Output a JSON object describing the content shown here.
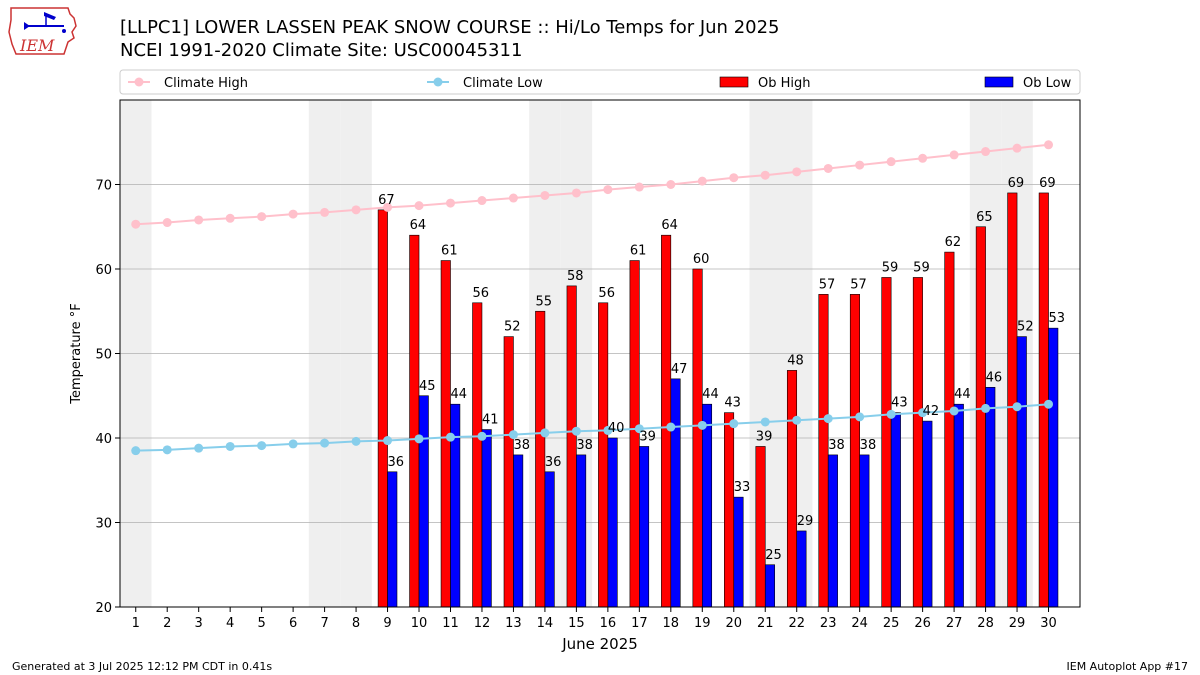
{
  "header": {
    "title_line1": "[LLPC1] LOWER LASSEN PEAK SNOW COURSE :: Hi/Lo Temps for Jun 2025",
    "title_line2": "NCEI 1991-2020 Climate Site: USC00045311",
    "logo_text": "IEM"
  },
  "footer": {
    "generated": "Generated at 3 Jul 2025 12:12 PM CDT in 0.41s",
    "app": "IEM Autoplot App #17"
  },
  "colors": {
    "climate_high": "#ffc0cb",
    "climate_low": "#87ceeb",
    "ob_high": "#ff0000",
    "ob_low": "#0000ff",
    "weekend_band": "#efefef"
  },
  "chart_data": {
    "type": "bar",
    "xlabel": "June 2025",
    "ylabel": "Temperature °F",
    "ylim": [
      20,
      80
    ],
    "yticks": [
      20,
      30,
      40,
      50,
      60,
      70
    ],
    "grid": "horizontal",
    "legend_position": "top",
    "weekend_days": [
      1,
      7,
      8,
      14,
      15,
      21,
      22,
      28,
      29
    ],
    "categories": [
      1,
      2,
      3,
      4,
      5,
      6,
      7,
      8,
      9,
      10,
      11,
      12,
      13,
      14,
      15,
      16,
      17,
      18,
      19,
      20,
      21,
      22,
      23,
      24,
      25,
      26,
      27,
      28,
      29,
      30
    ],
    "series": [
      {
        "name": "Climate High",
        "kind": "line",
        "values": [
          65.3,
          65.5,
          65.8,
          66.0,
          66.2,
          66.5,
          66.7,
          67.0,
          67.3,
          67.5,
          67.8,
          68.1,
          68.4,
          68.7,
          69.0,
          69.4,
          69.7,
          70.0,
          70.4,
          70.8,
          71.1,
          71.5,
          71.9,
          72.3,
          72.7,
          73.1,
          73.5,
          73.9,
          74.3,
          74.7
        ]
      },
      {
        "name": "Climate Low",
        "kind": "line",
        "values": [
          38.5,
          38.6,
          38.8,
          39.0,
          39.1,
          39.3,
          39.4,
          39.6,
          39.7,
          39.9,
          40.1,
          40.2,
          40.4,
          40.6,
          40.8,
          40.9,
          41.1,
          41.3,
          41.5,
          41.7,
          41.9,
          42.1,
          42.3,
          42.5,
          42.8,
          43.0,
          43.2,
          43.5,
          43.7,
          44.0
        ]
      },
      {
        "name": "Ob High",
        "kind": "bar",
        "values": [
          null,
          null,
          null,
          null,
          null,
          null,
          null,
          null,
          67,
          64,
          61,
          56,
          52,
          55,
          58,
          56,
          61,
          64,
          60,
          43,
          39,
          48,
          57,
          57,
          59,
          59,
          62,
          65,
          69,
          69
        ],
        "labels": [
          "",
          "",
          "",
          "",
          "",
          "",
          "",
          "",
          "67",
          "64",
          "61",
          "56",
          "52",
          "55",
          "58",
          "56",
          "61",
          "64",
          "60",
          "43",
          "39",
          "48",
          "57",
          "57",
          "59",
          "59",
          "62",
          "65",
          "69",
          "69"
        ]
      },
      {
        "name": "Ob Low",
        "kind": "bar",
        "values": [
          null,
          null,
          null,
          null,
          null,
          null,
          null,
          null,
          36,
          45,
          44,
          41,
          38,
          36,
          38,
          40,
          39,
          47,
          44,
          33,
          25,
          29,
          38,
          38,
          43,
          42,
          44,
          46,
          52,
          53
        ],
        "labels": [
          "",
          "",
          "",
          "",
          "",
          "",
          "",
          "",
          "36",
          "45",
          "44",
          "41",
          "38",
          "36",
          "38",
          "40",
          "39",
          "47",
          "44",
          "33",
          "25",
          "29",
          "38",
          "38",
          "43",
          "42",
          "44",
          "46",
          "52",
          "53"
        ]
      }
    ]
  }
}
